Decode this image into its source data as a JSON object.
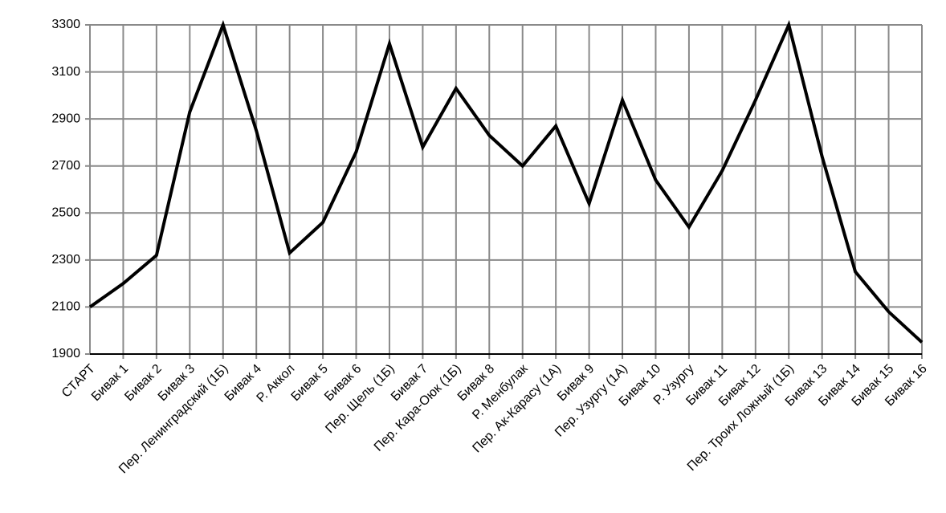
{
  "chart_data": {
    "type": "line",
    "categories": [
      "СТАРТ",
      "Бивак 1",
      "Бивак 2",
      "Бивак 3",
      "Пер. Ленинградский (1Б)",
      "Бивак 4",
      "Р. Аккол",
      "Бивак 5",
      "Бивак 6",
      "Пер. Щель (1Б)",
      "Бивак 7",
      "Пер. Кара-Оюк (1Б)",
      "Бивак 8",
      "Р. Менбулак",
      "Пер. Ак-Карасу (1А)",
      "Бивак 9",
      "Пер. Узургу (1А)",
      "Бивак 10",
      "Р. Узургу",
      "Бивак 11",
      "Бивак 12",
      "Пер. Троих Ложный (1Б)",
      "Бивак 13",
      "Бивак 14",
      "Бивак 15",
      "Бивак 16"
    ],
    "values": [
      2100,
      2200,
      2320,
      2930,
      3300,
      2850,
      2330,
      2460,
      2760,
      3220,
      2780,
      3030,
      2830,
      2700,
      2870,
      2540,
      2980,
      2640,
      2440,
      2680,
      2980,
      3300,
      2740,
      2250,
      2080,
      1950
    ],
    "color": "#000000",
    "ylim": [
      1900,
      3300
    ],
    "yticks": [
      1900,
      2100,
      2300,
      2500,
      2700,
      2900,
      3100,
      3300
    ],
    "grid": true
  }
}
